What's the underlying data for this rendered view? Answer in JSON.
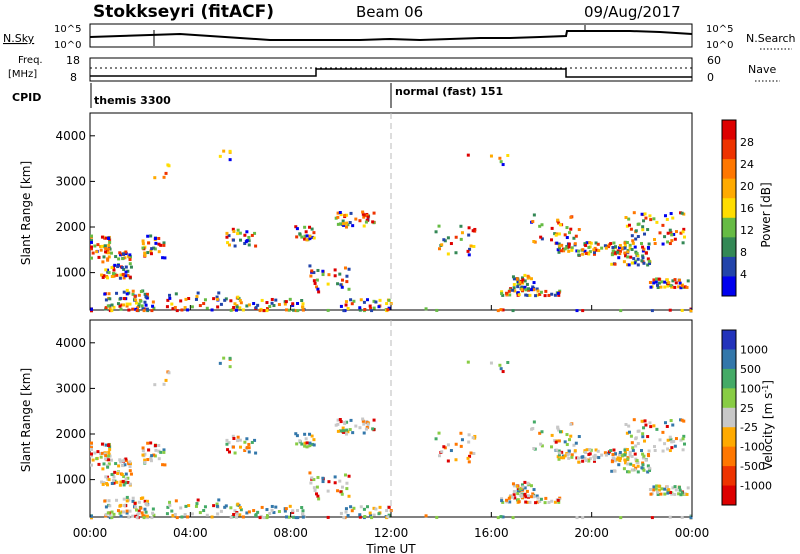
{
  "header": {
    "station": "Stokkseyri (fitACF)",
    "beam": "Beam 06",
    "date": "09/Aug/2017"
  },
  "noise_panel": {
    "left_label": "N.Sky",
    "right_label": "N.Search",
    "left_ticks": [
      "10^5",
      "10^0"
    ],
    "right_ticks": [
      "10^5",
      "10^0"
    ]
  },
  "freq_panel": {
    "left_label_line1": "Freq.",
    "left_label_line2": "[MHz]",
    "left_ticks": [
      "18",
      "8"
    ],
    "right_label": "Nave",
    "right_ticks": [
      "60",
      "0"
    ]
  },
  "cpid_panel": {
    "label": "CPID",
    "modes": [
      "themis 3300",
      "normal (fast) 151"
    ]
  },
  "x_axis": {
    "ticks": [
      "00:00",
      "04:00",
      "08:00",
      "12:00",
      "16:00",
      "20:00",
      "00:00"
    ],
    "label": "Time UT"
  },
  "chart_data": [
    {
      "type": "heatmap",
      "name": "power",
      "ylabel": "Slant Range [km]",
      "yticks": [
        "4000",
        "3000",
        "2000",
        "1000"
      ],
      "ylim": [
        180,
        4500
      ],
      "xlim_hours": [
        0,
        24
      ],
      "colorbar": {
        "label": "Power [dB]",
        "ticks": [
          "28",
          "24",
          "20",
          "16",
          "12",
          "8",
          "4"
        ],
        "colors": [
          "#dd0000",
          "#ee3300",
          "#ff7700",
          "#ffaa00",
          "#ffdd00",
          "#66bb44",
          "#338855",
          "#2244aa",
          "#0000ee"
        ]
      }
    },
    {
      "type": "heatmap",
      "name": "velocity",
      "ylabel": "Slant Range [km]",
      "yticks": [
        "4000",
        "3000",
        "2000",
        "1000"
      ],
      "ylim": [
        180,
        4500
      ],
      "xlim_hours": [
        0,
        24
      ],
      "colorbar": {
        "label": "Velocity [m s^-1]",
        "ticks": [
          "1000",
          "500",
          "100",
          "25",
          "-25",
          "-100",
          "-500",
          "-1000"
        ],
        "colors": [
          "#2233bb",
          "#3377aa",
          "#44aa66",
          "#88cc44",
          "#c8c8c8",
          "#ffaa00",
          "#ff7700",
          "#ee3300",
          "#dd0000"
        ]
      }
    }
  ]
}
